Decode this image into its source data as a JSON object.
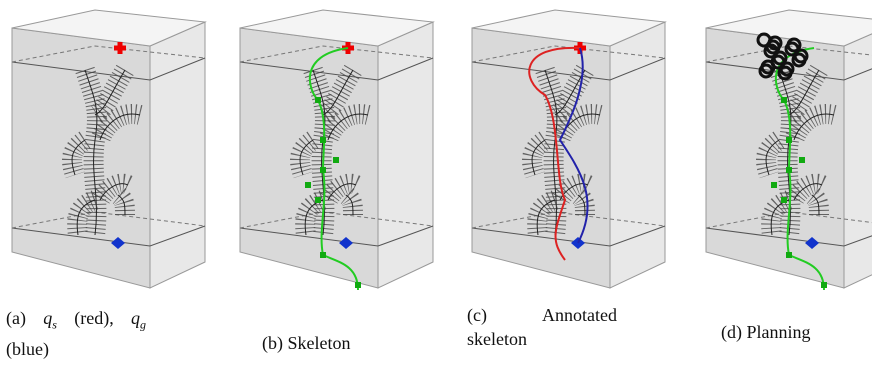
{
  "figures": [
    {
      "label": "(a)",
      "caption_parts": [
        "q",
        "s",
        "(red),",
        "q",
        "g",
        "(blue)"
      ]
    },
    {
      "label": "(b)",
      "caption": "Skeleton"
    },
    {
      "label": "(c)",
      "caption": "Annotated skeleton"
    },
    {
      "label": "(d)",
      "caption": "Planning"
    }
  ]
}
